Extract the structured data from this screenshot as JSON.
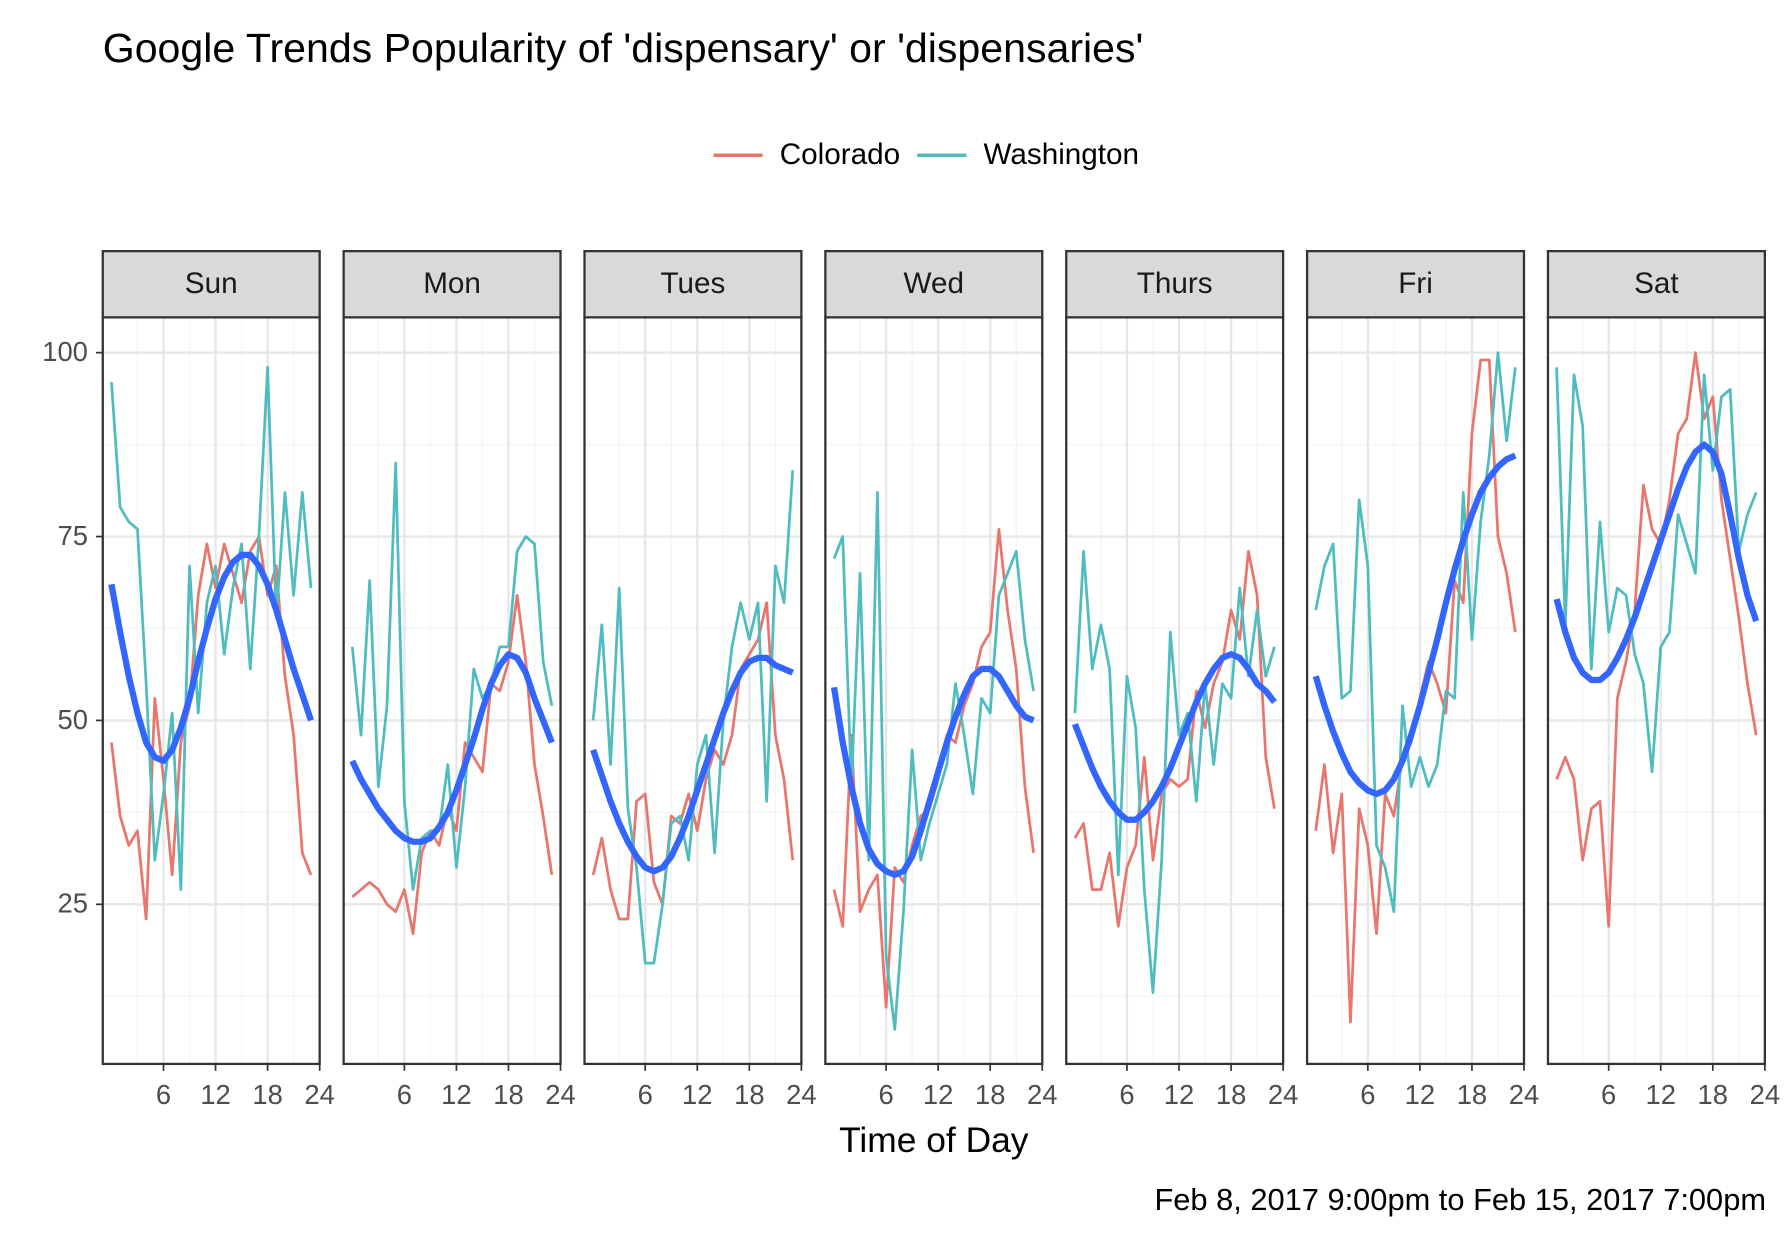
{
  "chart_data": {
    "type": "line",
    "title": "Google Trends Popularity of 'dispensary' or 'dispensaries'",
    "legend": "top",
    "x_label": "Time of Day",
    "caption": "Feb 8, 2017 9:00pm to Feb 15, 2017 7:00pm",
    "grid": true,
    "facets": [
      "Sun",
      "Mon",
      "Tues",
      "Wed",
      "Thurs",
      "Fri",
      "Sat"
    ],
    "x": [
      0,
      1,
      2,
      3,
      4,
      5,
      6,
      7,
      8,
      9,
      10,
      11,
      12,
      13,
      14,
      15,
      16,
      17,
      18,
      19,
      20,
      21,
      22,
      23
    ],
    "xlim": [
      -1.0,
      24
    ],
    "xticks": [
      6,
      12,
      18,
      24
    ],
    "minor_xticks": [
      3,
      9,
      15,
      21
    ],
    "ylim": [
      3.3,
      104.8
    ],
    "yticks": [
      25,
      50,
      75,
      100
    ],
    "minor_yticks": [
      12.5,
      37.5,
      62.5,
      87.5
    ],
    "series": [
      {
        "name": "Colorado",
        "color": "#e8766d",
        "values": [
          [
            47,
            37,
            33,
            35,
            23,
            53,
            42,
            29,
            47,
            52,
            67,
            74,
            68,
            74,
            70,
            66,
            73,
            75,
            67,
            71,
            56,
            48,
            32,
            29
          ],
          [
            26,
            27,
            28,
            27,
            25,
            24,
            27,
            21,
            32,
            35,
            33,
            38,
            35,
            47,
            45,
            43,
            55,
            54,
            58,
            67,
            58,
            44,
            37,
            29
          ],
          [
            29,
            34,
            27,
            23,
            23,
            39,
            40,
            28,
            25,
            37,
            36,
            40,
            35,
            42,
            46,
            44,
            48,
            57,
            59,
            61,
            66,
            48,
            42,
            31
          ],
          [
            27,
            22,
            48,
            24,
            27,
            29,
            11,
            30,
            28,
            33,
            37,
            38,
            42,
            48,
            47,
            52,
            55,
            60,
            62,
            76,
            65,
            57,
            41,
            32
          ],
          [
            34,
            36,
            27,
            27,
            32,
            22,
            30,
            33,
            45,
            31,
            40,
            42,
            41,
            42,
            54,
            49,
            55,
            58,
            65,
            61,
            73,
            67,
            45,
            38
          ],
          [
            35,
            44,
            32,
            40,
            9,
            38,
            33,
            21,
            40,
            37,
            45,
            47,
            53,
            58,
            55,
            51,
            69,
            66,
            89,
            99,
            99,
            75,
            70,
            62
          ],
          [
            42,
            45,
            42,
            31,
            38,
            39,
            22,
            53,
            58,
            65,
            82,
            76,
            74,
            80,
            89,
            91,
            100,
            91,
            94,
            80,
            72,
            64,
            55,
            48
          ]
        ]
      },
      {
        "name": "Washington",
        "color": "#4fbcbf",
        "values": [
          [
            96,
            79,
            77,
            76,
            55,
            31,
            40,
            51,
            27,
            71,
            51,
            66,
            71,
            59,
            68,
            74,
            57,
            75,
            98,
            64,
            81,
            67,
            81,
            68
          ],
          [
            60,
            48,
            69,
            41,
            52,
            85,
            39,
            27,
            34,
            35,
            35,
            44,
            30,
            41,
            57,
            53,
            55,
            60,
            60,
            73,
            75,
            74,
            58,
            52
          ],
          [
            50,
            63,
            44,
            68,
            38,
            30,
            17,
            17,
            25,
            36,
            37,
            31,
            44,
            48,
            32,
            50,
            60,
            66,
            61,
            66,
            39,
            71,
            66,
            84
          ],
          [
            72,
            75,
            41,
            70,
            31,
            81,
            18,
            8,
            24,
            46,
            31,
            36,
            40,
            44,
            55,
            48,
            40,
            53,
            51,
            67,
            70,
            73,
            61,
            54
          ],
          [
            51,
            73,
            57,
            63,
            57,
            29,
            56,
            49,
            27,
            13,
            31,
            62,
            48,
            51,
            39,
            55,
            44,
            55,
            53,
            68,
            56,
            65,
            56,
            60
          ],
          [
            65,
            71,
            74,
            53,
            54,
            80,
            71,
            33,
            30,
            24,
            52,
            41,
            45,
            41,
            44,
            54,
            53,
            81,
            61,
            77,
            86,
            100,
            88,
            98
          ],
          [
            98,
            63,
            97,
            90,
            57,
            77,
            62,
            68,
            67,
            59,
            55,
            43,
            60,
            62,
            78,
            74,
            70,
            97,
            84,
            94,
            95,
            73,
            78,
            81
          ]
        ]
      }
    ],
    "smooth": {
      "color": "#3366ff",
      "values": [
        [
          68.5,
          62,
          56,
          51,
          47,
          45,
          44.5,
          46,
          49,
          53,
          58,
          62.5,
          66.5,
          69.5,
          71.5,
          72.5,
          72.5,
          71,
          68.5,
          65,
          61,
          57,
          53.5,
          50
        ],
        [
          44.5,
          42,
          40,
          38,
          36.5,
          35,
          34,
          33.5,
          33.5,
          34,
          35.5,
          37.5,
          40.5,
          44,
          47.5,
          51.5,
          55,
          57.5,
          59,
          58.5,
          56.5,
          53,
          50,
          47
        ],
        [
          46,
          42.5,
          39,
          36,
          33.5,
          31.5,
          30,
          29.5,
          30,
          31.5,
          34,
          37,
          40.5,
          44,
          47.5,
          51,
          54,
          56.5,
          58,
          58.5,
          58.5,
          57.5,
          57,
          56.5
        ],
        [
          54.5,
          47,
          41,
          36,
          32.5,
          30.5,
          29.5,
          29,
          29.5,
          31.5,
          35,
          39,
          43,
          47,
          50.5,
          53.5,
          56,
          57,
          57,
          56,
          54,
          52,
          50.5,
          50
        ],
        [
          49.5,
          46.5,
          43.5,
          41,
          39,
          37.5,
          36.5,
          36.5,
          37.5,
          39,
          41,
          43.5,
          46.5,
          49.5,
          52.5,
          55,
          57,
          58.5,
          59,
          58.5,
          57,
          55,
          54,
          52.5
        ],
        [
          56,
          52,
          48.5,
          45.5,
          43,
          41.5,
          40.5,
          40,
          40.5,
          42,
          44.5,
          48,
          52,
          56.5,
          61,
          66,
          70.5,
          74.5,
          78,
          81,
          83,
          84.5,
          85.5,
          86
        ],
        [
          66.5,
          62,
          58.5,
          56.5,
          55.5,
          55.5,
          56.5,
          58.5,
          61,
          64,
          67.5,
          71,
          74.5,
          78,
          81.5,
          84.5,
          86.5,
          87.5,
          86.5,
          83.5,
          78,
          72,
          67,
          63.5
        ]
      ]
    }
  }
}
